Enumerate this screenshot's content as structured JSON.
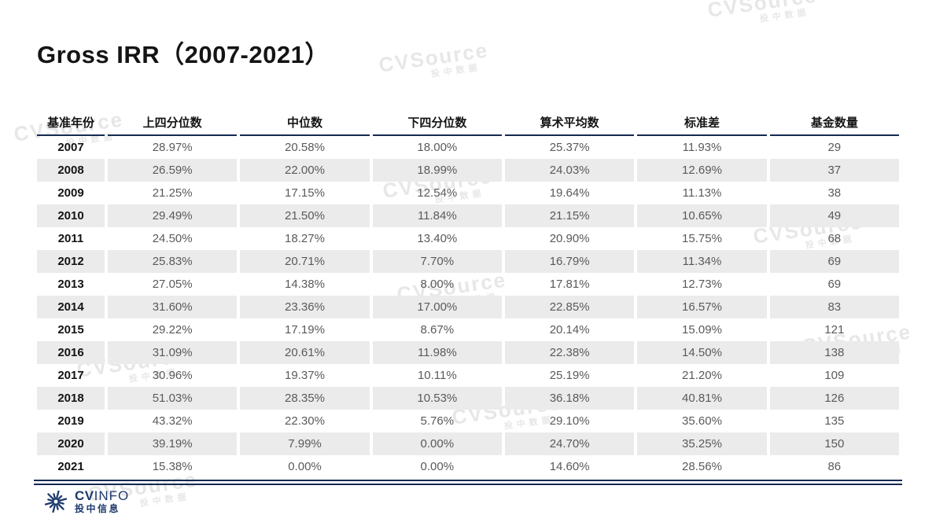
{
  "title": "Gross IRR（2007-2021）",
  "colors": {
    "rule_navy": "#152a52",
    "row_shade": "#ebebeb",
    "value_text": "#5a5a5a",
    "logo_navy": "#1e3a6d",
    "watermark_gray": "#e7e7e7"
  },
  "watermark": {
    "brand": "CVSource",
    "sub": "投中数据"
  },
  "table": {
    "columns": [
      "基准年份",
      "上四分位数",
      "中位数",
      "下四分位数",
      "算术平均数",
      "标准差",
      "基金数量"
    ],
    "rows": [
      {
        "year": "2007",
        "values": [
          "28.97%",
          "20.58%",
          "18.00%",
          "25.37%",
          "11.93%",
          "29"
        ]
      },
      {
        "year": "2008",
        "values": [
          "26.59%",
          "22.00%",
          "18.99%",
          "24.03%",
          "12.69%",
          "37"
        ]
      },
      {
        "year": "2009",
        "values": [
          "21.25%",
          "17.15%",
          "12.54%",
          "19.64%",
          "11.13%",
          "38"
        ]
      },
      {
        "year": "2010",
        "values": [
          "29.49%",
          "21.50%",
          "11.84%",
          "21.15%",
          "10.65%",
          "49"
        ]
      },
      {
        "year": "2011",
        "values": [
          "24.50%",
          "18.27%",
          "13.40%",
          "20.90%",
          "15.75%",
          "68"
        ]
      },
      {
        "year": "2012",
        "values": [
          "25.83%",
          "20.71%",
          "7.70%",
          "16.79%",
          "11.34%",
          "69"
        ]
      },
      {
        "year": "2013",
        "values": [
          "27.05%",
          "14.38%",
          "8.00%",
          "17.81%",
          "12.73%",
          "69"
        ]
      },
      {
        "year": "2014",
        "values": [
          "31.60%",
          "23.36%",
          "17.00%",
          "22.85%",
          "16.57%",
          "83"
        ]
      },
      {
        "year": "2015",
        "values": [
          "29.22%",
          "17.19%",
          "8.67%",
          "20.14%",
          "15.09%",
          "121"
        ]
      },
      {
        "year": "2016",
        "values": [
          "31.09%",
          "20.61%",
          "11.98%",
          "22.38%",
          "14.50%",
          "138"
        ]
      },
      {
        "year": "2017",
        "values": [
          "30.96%",
          "19.37%",
          "10.11%",
          "25.19%",
          "21.20%",
          "109"
        ]
      },
      {
        "year": "2018",
        "values": [
          "51.03%",
          "28.35%",
          "10.53%",
          "36.18%",
          "40.81%",
          "126"
        ]
      },
      {
        "year": "2019",
        "values": [
          "43.32%",
          "22.30%",
          "5.76%",
          "29.10%",
          "35.60%",
          "135"
        ]
      },
      {
        "year": "2020",
        "values": [
          "39.19%",
          "7.99%",
          "0.00%",
          "24.70%",
          "35.25%",
          "150"
        ]
      },
      {
        "year": "2021",
        "values": [
          "15.38%",
          "0.00%",
          "0.00%",
          "14.60%",
          "28.56%",
          "86"
        ]
      }
    ]
  },
  "chart_data": {
    "type": "table",
    "title": "Gross IRR（2007-2021）",
    "columns": [
      "基准年份",
      "上四分位数",
      "中位数",
      "下四分位数",
      "算术平均数",
      "标准差",
      "基金数量"
    ],
    "rows": [
      [
        "2007",
        "28.97%",
        "20.58%",
        "18.00%",
        "25.37%",
        "11.93%",
        "29"
      ],
      [
        "2008",
        "26.59%",
        "22.00%",
        "18.99%",
        "24.03%",
        "12.69%",
        "37"
      ],
      [
        "2009",
        "21.25%",
        "17.15%",
        "12.54%",
        "19.64%",
        "11.13%",
        "38"
      ],
      [
        "2010",
        "29.49%",
        "21.50%",
        "11.84%",
        "21.15%",
        "10.65%",
        "49"
      ],
      [
        "2011",
        "24.50%",
        "18.27%",
        "13.40%",
        "20.90%",
        "15.75%",
        "68"
      ],
      [
        "2012",
        "25.83%",
        "20.71%",
        "7.70%",
        "16.79%",
        "11.34%",
        "69"
      ],
      [
        "2013",
        "27.05%",
        "14.38%",
        "8.00%",
        "17.81%",
        "12.73%",
        "69"
      ],
      [
        "2014",
        "31.60%",
        "23.36%",
        "17.00%",
        "22.85%",
        "16.57%",
        "83"
      ],
      [
        "2015",
        "29.22%",
        "17.19%",
        "8.67%",
        "20.14%",
        "15.09%",
        "121"
      ],
      [
        "2016",
        "31.09%",
        "20.61%",
        "11.98%",
        "22.38%",
        "14.50%",
        "138"
      ],
      [
        "2017",
        "30.96%",
        "19.37%",
        "10.11%",
        "25.19%",
        "21.20%",
        "109"
      ],
      [
        "2018",
        "51.03%",
        "28.35%",
        "10.53%",
        "36.18%",
        "40.81%",
        "126"
      ],
      [
        "2019",
        "43.32%",
        "22.30%",
        "5.76%",
        "29.10%",
        "35.60%",
        "135"
      ],
      [
        "2020",
        "39.19%",
        "7.99%",
        "0.00%",
        "24.70%",
        "35.25%",
        "150"
      ],
      [
        "2021",
        "15.38%",
        "0.00%",
        "0.00%",
        "14.60%",
        "28.56%",
        "86"
      ]
    ]
  },
  "footer": {
    "logo_cv": "CV",
    "logo_info": "INFO",
    "logo_chinese": "投中信息"
  }
}
